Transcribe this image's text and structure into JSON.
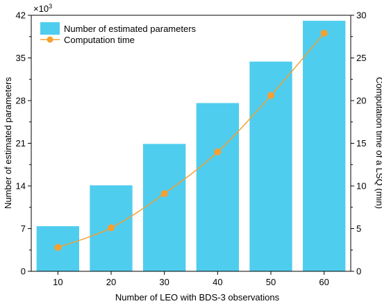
{
  "chart_data": {
    "type": "bar",
    "categories": [
      "10",
      "20",
      "30",
      "40",
      "50",
      "60"
    ],
    "series": [
      {
        "name": "Number of estimated parameters",
        "type": "bar",
        "axis": "left",
        "values": [
          7.4,
          14.1,
          20.9,
          27.6,
          34.4,
          41.1
        ],
        "color": "#4fcdee"
      },
      {
        "name": "Computation time",
        "type": "line",
        "axis": "right",
        "values": [
          2.8,
          5.1,
          9.1,
          14.0,
          20.6,
          27.9
        ],
        "color": "#f5a030"
      }
    ],
    "xlabel": "Number of LEO with BDS-3 observations",
    "ylabel": "Number of estimated parameters",
    "y2label": "Computation time of a LSQ (min)",
    "ylim": [
      0,
      42
    ],
    "y2lim": [
      0,
      30
    ],
    "yticks": [
      "0",
      "7",
      "14",
      "21",
      "28",
      "35",
      "42"
    ],
    "y2ticks": [
      "0",
      "5",
      "10",
      "15",
      "20",
      "25",
      "30"
    ],
    "y_multiplier": "×10",
    "y_multiplier_exp": "3",
    "legend_position": "top-left",
    "grid": false
  }
}
